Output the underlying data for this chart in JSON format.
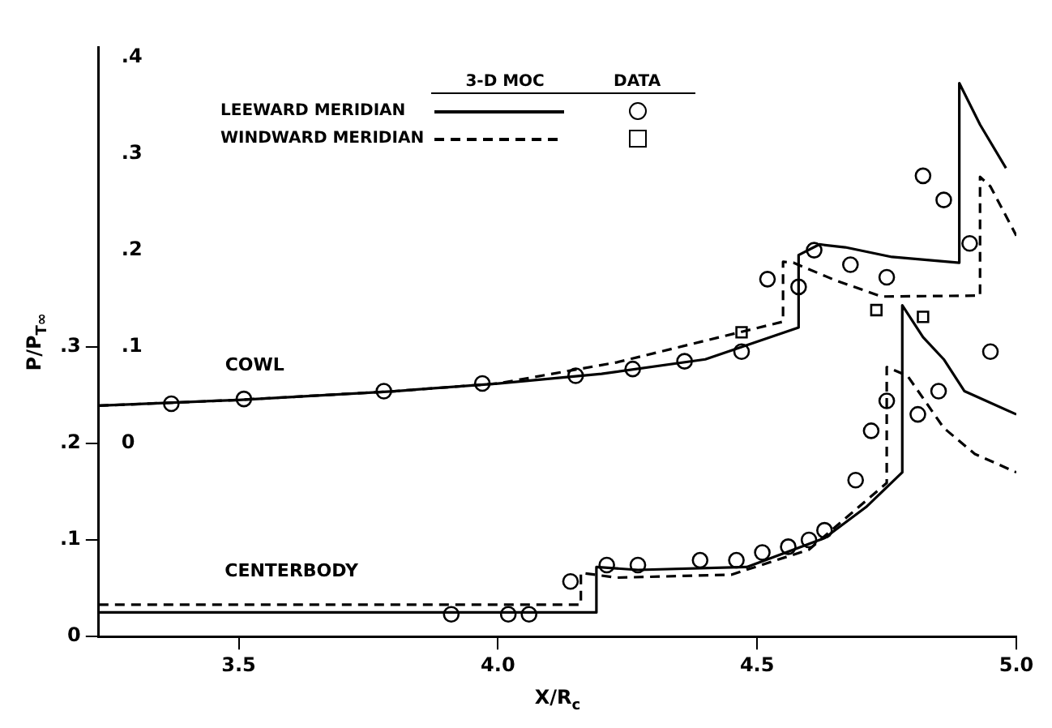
{
  "chart_data": {
    "type": "line",
    "xlabel": "X/R$_{c}$",
    "ylabel": "P/P$_{T∞}$",
    "xlim": [
      3.23,
      5.0
    ],
    "xticks": [
      3.5,
      {
        "value": 4,
        "label": "4.0"
      },
      4.5,
      {
        "value": 5,
        "label": "5.0"
      }
    ],
    "ylim": [
      0,
      0.61
    ],
    "yticks": [
      0,
      {
        "value": 0.1,
        "label": ".1"
      },
      {
        "value": 0.2,
        "label": ".2"
      },
      {
        "value": 0.3,
        "label": ".3"
      }
    ],
    "y2lim": [
      -0.2,
      0.41
    ],
    "y2ticks": [
      0,
      {
        "value": 0.1,
        "label": ".1"
      },
      {
        "value": 0.2,
        "label": ".2"
      },
      {
        "value": 0.3,
        "label": ".3"
      },
      {
        "value": 0.4,
        "label": ".4"
      }
    ],
    "legend": "top",
    "grid": false,
    "annotations": [
      "3-D MOC",
      "DATA",
      "COWL",
      "CENTERBODY"
    ],
    "series": [
      {
        "name": "LEEWARD MERIDIAN",
        "type": "line",
        "axis": "y2",
        "line_style": "solid",
        "color": "#000000",
        "x": [
          3.23,
          3.5,
          3.8,
          4.0,
          4.2,
          4.4,
          4.58,
          4.58,
          4.62,
          4.67,
          4.76,
          4.89,
          4.89,
          4.93,
          4.98
        ],
        "values": [
          0.039,
          0.045,
          0.054,
          0.062,
          0.072,
          0.087,
          0.12,
          0.195,
          0.206,
          0.203,
          0.193,
          0.187,
          0.373,
          0.33,
          0.285
        ]
      },
      {
        "name": "WINDWARD MERIDIAN",
        "type": "line",
        "axis": "y2",
        "line_style": "dashed",
        "color": "#000000",
        "x": [
          3.23,
          3.5,
          3.8,
          4.0,
          4.23,
          4.55,
          4.55,
          4.57,
          4.65,
          4.74,
          4.93,
          4.93,
          4.95,
          5.0
        ],
        "values": [
          0.039,
          0.045,
          0.054,
          0.062,
          0.084,
          0.126,
          0.188,
          0.187,
          0.169,
          0.152,
          0.153,
          0.276,
          0.266,
          0.215
        ]
      },
      {
        "type": "line",
        "line_style": "solid",
        "color": "#000000",
        "x": [
          3.23,
          4.19,
          4.19,
          4.27,
          4.48,
          4.63,
          4.71,
          4.78,
          4.78,
          4.82,
          4.86,
          4.9,
          5.0
        ],
        "values": [
          0.025,
          0.025,
          0.072,
          0.069,
          0.072,
          0.102,
          0.134,
          0.17,
          0.343,
          0.31,
          0.287,
          0.254,
          0.23
        ]
      },
      {
        "type": "line",
        "line_style": "dashed",
        "color": "#000000",
        "x": [
          3.23,
          4.16,
          4.16,
          4.23,
          4.45,
          4.6,
          4.75,
          4.75,
          4.79,
          4.86,
          4.92,
          5.0
        ],
        "values": [
          0.033,
          0.033,
          0.066,
          0.061,
          0.064,
          0.09,
          0.159,
          0.279,
          0.27,
          0.216,
          0.189,
          0.17
        ]
      },
      {
        "type": "scatter",
        "axis": "y2",
        "marker": "circle",
        "color": "#000000",
        "x": [
          3.37,
          3.51,
          3.78,
          3.97,
          4.15,
          4.26,
          4.36,
          4.47,
          4.58,
          4.52,
          4.61,
          4.68,
          4.75,
          4.82,
          4.86,
          4.91
        ],
        "values": [
          0.041,
          0.046,
          0.054,
          0.062,
          0.07,
          0.077,
          0.085,
          0.095,
          0.162,
          0.17,
          0.2,
          0.185,
          0.172,
          0.277,
          0.252,
          0.207
        ]
      },
      {
        "type": "scatter",
        "axis": "y2",
        "marker": "square",
        "color": "#000000",
        "x": [
          4.47,
          4.73,
          4.82
        ],
        "values": [
          0.115,
          0.138,
          0.131
        ]
      },
      {
        "type": "scatter",
        "marker": "circle",
        "color": "#000000",
        "x": [
          3.91,
          4.02,
          4.06,
          4.14,
          4.21,
          4.27,
          4.39,
          4.46,
          4.51,
          4.56,
          4.6,
          4.63,
          4.69,
          4.72,
          4.75,
          4.81,
          4.85,
          4.95
        ],
        "values": [
          0.023,
          0.023,
          0.023,
          0.057,
          0.074,
          0.074,
          0.079,
          0.079,
          0.087,
          0.093,
          0.1,
          0.11,
          0.162,
          0.213,
          0.244,
          0.23,
          0.254,
          0.295
        ]
      }
    ]
  }
}
